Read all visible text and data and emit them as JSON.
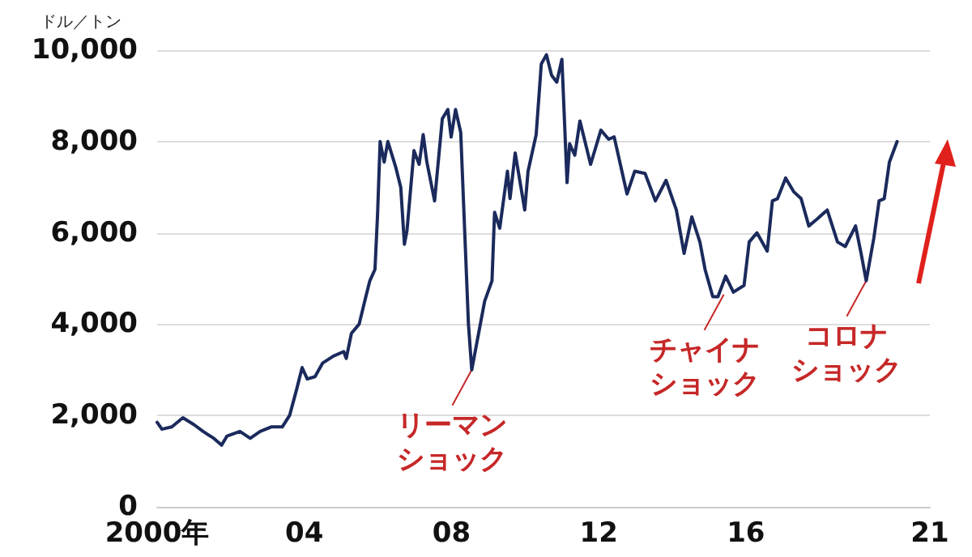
{
  "chart_data": {
    "type": "line",
    "ylabel": "ドル／トン",
    "x": [
      2000.0,
      2000.13,
      2000.4,
      2000.7,
      2001.0,
      2001.25,
      2001.54,
      2001.75,
      2001.9,
      2002.25,
      2002.53,
      2002.8,
      2003.1,
      2003.4,
      2003.6,
      2003.8,
      2003.94,
      2004.08,
      2004.29,
      2004.5,
      2004.79,
      2005.07,
      2005.14,
      2005.28,
      2005.49,
      2005.64,
      2005.78,
      2005.92,
      2005.99,
      2006.06,
      2006.17,
      2006.27,
      2006.48,
      2006.62,
      2006.72,
      2006.79,
      2006.98,
      2007.12,
      2007.23,
      2007.33,
      2007.54,
      2007.75,
      2007.9,
      2007.99,
      2008.11,
      2008.25,
      2008.46,
      2008.55,
      2008.9,
      2009.1,
      2009.17,
      2009.31,
      2009.52,
      2009.59,
      2009.73,
      2009.99,
      2010.08,
      2010.3,
      2010.44,
      2010.58,
      2010.72,
      2010.86,
      2011.0,
      2011.14,
      2011.21,
      2011.35,
      2011.49,
      2011.78,
      2012.06,
      2012.27,
      2012.42,
      2012.63,
      2012.77,
      2012.98,
      2013.26,
      2013.54,
      2013.83,
      2014.11,
      2014.32,
      2014.53,
      2014.75,
      2014.89,
      2015.1,
      2015.24,
      2015.45,
      2015.66,
      2015.95,
      2016.09,
      2016.3,
      2016.58,
      2016.72,
      2016.86,
      2017.08,
      2017.3,
      2017.5,
      2017.71,
      2017.93,
      2018.21,
      2018.49,
      2018.7,
      2018.98,
      2019.13,
      2019.27,
      2019.48,
      2019.62,
      2019.76,
      2019.9,
      2020.11
    ],
    "series": [
      {
        "color": "#1b2a5c",
        "values": [
          1850,
          1700,
          1750,
          1950,
          1800,
          1650,
          1500,
          1350,
          1550,
          1650,
          1500,
          1650,
          1750,
          1750,
          2000,
          2600,
          3050,
          2800,
          2850,
          3150,
          3300,
          3400,
          3250,
          3800,
          4000,
          4500,
          4950,
          5200,
          6400,
          8000,
          7550,
          8000,
          7450,
          7000,
          5750,
          6050,
          7800,
          7500,
          8150,
          7550,
          6700,
          8500,
          8700,
          8100,
          8700,
          8200,
          4000,
          3000,
          4500,
          4950,
          6450,
          6100,
          7350,
          6750,
          7750,
          6500,
          7350,
          8150,
          9700,
          9900,
          9450,
          9300,
          9800,
          7100,
          7950,
          7700,
          8450,
          7500,
          8250,
          8050,
          8100,
          7350,
          6850,
          7350,
          7300,
          6700,
          7150,
          6500,
          5550,
          6350,
          5800,
          5200,
          4600,
          4600,
          5050,
          4700,
          4850,
          5800,
          6000,
          5600,
          6700,
          6750,
          7200,
          6900,
          6750,
          6150,
          6300,
          6500,
          5800,
          5700,
          6150,
          5550,
          4950,
          5900,
          6700,
          6750,
          7550,
          8000
        ]
      }
    ],
    "xlim": [
      2000,
      2021
    ],
    "xticks": [
      {
        "value": 2000,
        "label": "2000年"
      },
      {
        "value": 2004,
        "label": "04"
      },
      {
        "value": 2008,
        "label": "08"
      },
      {
        "value": 2012,
        "label": "12"
      },
      {
        "value": 2016,
        "label": "16"
      },
      {
        "value": 2021,
        "label": "21"
      }
    ],
    "ylim": [
      0,
      10000
    ],
    "yticks": [
      0,
      {
        "value": 2000,
        "label": "2,000"
      },
      {
        "value": 4000,
        "label": "4,000"
      },
      {
        "value": 6000,
        "label": "6,000"
      },
      {
        "value": 8000,
        "label": "8,000"
      },
      {
        "value": 10000,
        "label": "10,000"
      }
    ],
    "grid": "y",
    "marker": "none",
    "line_style": "solid",
    "annotations": [
      {
        "text": "リーマンショック",
        "x": 2008.55,
        "y": 3000
      },
      {
        "text": "チャイナショック",
        "x": 2015.4,
        "y": 4650
      },
      {
        "text": "コロナショック",
        "x": 2019.27,
        "y": 4950
      }
    ]
  }
}
